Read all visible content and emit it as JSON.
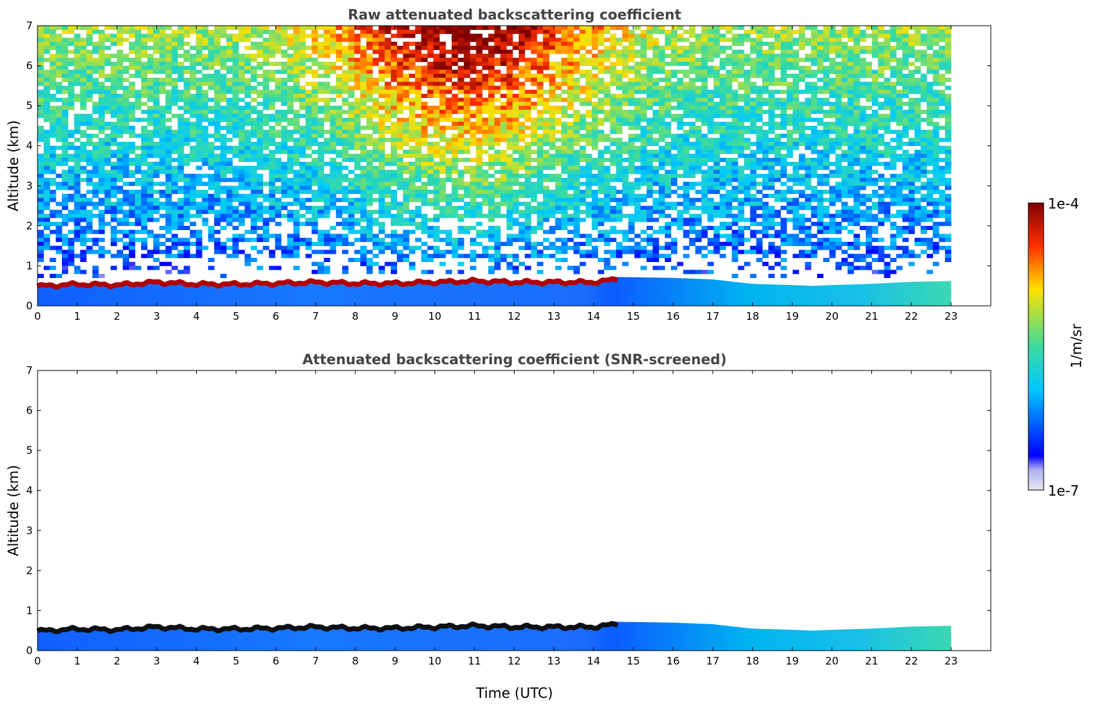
{
  "chart_data": [
    {
      "type": "heatmap",
      "title": "Raw attenuated backscattering coefficient",
      "xlabel": "",
      "ylabel": "Altitude (km)",
      "xlim": [
        0,
        24
      ],
      "ylim": [
        0,
        7
      ],
      "x_ticks": [
        "0",
        "1",
        "2",
        "3",
        "4",
        "5",
        "6",
        "7",
        "8",
        "9",
        "10",
        "11",
        "12",
        "13",
        "14",
        "15",
        "16",
        "17",
        "18",
        "19",
        "20",
        "21",
        "22",
        "23"
      ],
      "y_ticks": [
        "0",
        "1",
        "2",
        "3",
        "4",
        "5",
        "6",
        "7"
      ],
      "data_end_time": 23,
      "features": {
        "boundary_layer_top_km": [
          [
            0,
            0.55
          ],
          [
            1,
            0.6
          ],
          [
            2,
            0.58
          ],
          [
            3,
            0.65
          ],
          [
            4,
            0.6
          ],
          [
            5,
            0.6
          ],
          [
            6,
            0.62
          ],
          [
            7,
            0.65
          ],
          [
            8,
            0.62
          ],
          [
            9,
            0.62
          ],
          [
            10,
            0.65
          ],
          [
            11,
            0.68
          ],
          [
            12,
            0.65
          ],
          [
            13,
            0.65
          ],
          [
            14,
            0.65
          ],
          [
            14.6,
            0.72
          ],
          [
            16,
            0.7
          ],
          [
            17,
            0.66
          ],
          [
            18,
            0.55
          ],
          [
            19,
            0.52
          ],
          [
            19.5,
            0.5
          ],
          [
            20,
            0.52
          ],
          [
            21,
            0.55
          ],
          [
            22,
            0.6
          ],
          [
            23,
            0.62
          ]
        ],
        "high_signal_region_time": [
          7,
          14.5
        ]
      }
    },
    {
      "type": "heatmap",
      "title": "Attenuated backscattering coefficient (SNR-screened)",
      "xlabel": "Time (UTC)",
      "ylabel": "Altitude (km)",
      "xlim": [
        0,
        24
      ],
      "ylim": [
        0,
        7
      ],
      "x_ticks": [
        "0",
        "1",
        "2",
        "3",
        "4",
        "5",
        "6",
        "7",
        "8",
        "9",
        "10",
        "11",
        "12",
        "13",
        "14",
        "15",
        "16",
        "17",
        "18",
        "19",
        "20",
        "21",
        "22",
        "23"
      ],
      "y_ticks": [
        "0",
        "1",
        "2",
        "3",
        "4",
        "5",
        "6",
        "7"
      ],
      "data_end_time": 23,
      "features": {
        "boundary_layer_top_km": [
          [
            0,
            0.55
          ],
          [
            1,
            0.6
          ],
          [
            2,
            0.58
          ],
          [
            3,
            0.65
          ],
          [
            4,
            0.6
          ],
          [
            5,
            0.6
          ],
          [
            6,
            0.62
          ],
          [
            7,
            0.65
          ],
          [
            8,
            0.62
          ],
          [
            9,
            0.62
          ],
          [
            10,
            0.65
          ],
          [
            11,
            0.68
          ],
          [
            12,
            0.65
          ],
          [
            13,
            0.65
          ],
          [
            14,
            0.65
          ],
          [
            14.6,
            0.72
          ],
          [
            16,
            0.7
          ],
          [
            17,
            0.66
          ],
          [
            18,
            0.55
          ],
          [
            19,
            0.52
          ],
          [
            19.5,
            0.5
          ],
          [
            20,
            0.52
          ],
          [
            21,
            0.55
          ],
          [
            22,
            0.6
          ],
          [
            23,
            0.62
          ]
        ]
      }
    }
  ],
  "colorbar": {
    "label": "1/m/sr",
    "max_label": "1e-4",
    "min_label": "1e-7",
    "scale": "log",
    "colormap": [
      "#e6e6f5",
      "#0000ff",
      "#00c8ff",
      "#3cdc9c",
      "#ffe000",
      "#ff3000",
      "#800000"
    ]
  }
}
